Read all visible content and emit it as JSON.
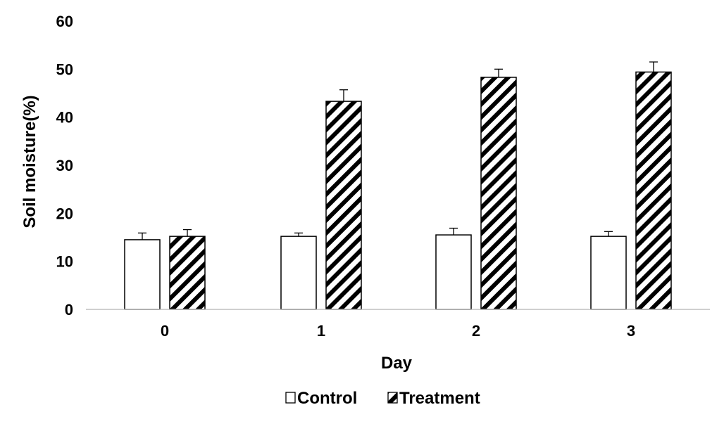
{
  "chart_data": {
    "type": "bar",
    "title": "",
    "xlabel": "Day",
    "ylabel": "Soil moisture(%)",
    "categories": [
      "0",
      "1",
      "2",
      "3"
    ],
    "ylim": [
      0,
      60
    ],
    "yticks": [
      "0",
      "10",
      "20",
      "30",
      "40",
      "50",
      "60"
    ],
    "grid": false,
    "legend_position": "bottom",
    "series": [
      {
        "name": "Control",
        "pattern": "solid-white",
        "values": [
          14.5,
          15.2,
          15.5,
          15.2
        ],
        "errors": [
          1.4,
          0.7,
          1.4,
          1.0
        ]
      },
      {
        "name": "Treatment",
        "pattern": "diagonal-hatch",
        "values": [
          15.2,
          43.3,
          48.3,
          49.4
        ],
        "errors": [
          1.4,
          2.4,
          1.7,
          2.1
        ]
      }
    ],
    "colors": {
      "bar_fill": "#ffffff",
      "bar_stroke": "#000000",
      "hatch": "#000000",
      "baseline": "#bfbfbf"
    }
  }
}
